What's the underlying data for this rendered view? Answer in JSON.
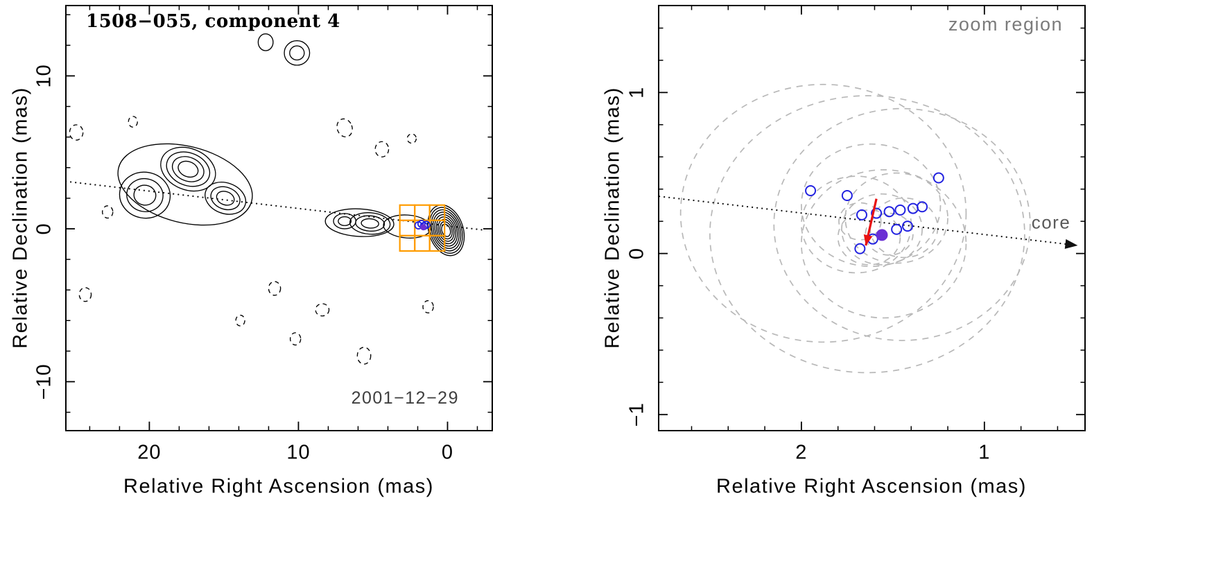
{
  "figure": {
    "bg": "#ffffff",
    "colors": {
      "contour": "#000000",
      "zoom_box": "#ff9c00",
      "epoch_point": "#2222e0",
      "mean_point": "#6a2fd4",
      "arrow": "#e81212",
      "dashed_ellipse": "#b8b8b8",
      "axis": "#000000"
    }
  },
  "chart_data": [
    {
      "type": "contour",
      "panel": "left",
      "title": "1508−055, component 4",
      "date_label": "2001−12−29",
      "xlabel": "Relative Right Ascension (mas)",
      "ylabel": "Relative Declination (mas)",
      "x_range": [
        25.6,
        -3.0
      ],
      "y_range": [
        -13.2,
        14.6
      ],
      "x_major": [
        {
          "v": 20,
          "label": "20"
        },
        {
          "v": 10,
          "label": "10"
        },
        {
          "v": 0,
          "label": "0"
        }
      ],
      "x_minor_step": 2,
      "y_major": [
        {
          "v": -10,
          "label": "−10"
        },
        {
          "v": 0,
          "label": "0"
        },
        {
          "v": 10,
          "label": "10"
        }
      ],
      "y_minor_step": 2,
      "jet_axis_line": {
        "x1": 25.6,
        "y1": 3.1,
        "x2": -2.6,
        "y2": -0.1
      },
      "contour_features": [
        {
          "x": 0.1,
          "y": -0.1,
          "rx": 1.15,
          "ry": 1.7,
          "angle": -18,
          "levels": 9,
          "style": "solid"
        },
        {
          "x": 2.7,
          "y": 0.15,
          "rx": 1.6,
          "ry": 0.75,
          "angle": 4,
          "levels": 1,
          "style": "solid"
        },
        {
          "x": 5.2,
          "y": 0.35,
          "rx": 1.35,
          "ry": 0.7,
          "angle": 4,
          "levels": 3,
          "style": "solid"
        },
        {
          "x": 6.9,
          "y": 0.5,
          "rx": 0.75,
          "ry": 0.5,
          "angle": 0,
          "levels": 2,
          "style": "solid"
        },
        {
          "x": 5.9,
          "y": 0.4,
          "rx": 2.3,
          "ry": 0.9,
          "angle": 3,
          "levels": 1,
          "style": "solid"
        },
        {
          "x": 17.6,
          "y": 2.9,
          "rx": 4.6,
          "ry": 2.5,
          "angle": 14,
          "levels": 1,
          "style": "solid"
        },
        {
          "x": 14.9,
          "y": 2.0,
          "rx": 1.4,
          "ry": 1.0,
          "angle": 20,
          "levels": 3,
          "style": "solid"
        },
        {
          "x": 17.4,
          "y": 3.9,
          "rx": 1.9,
          "ry": 1.35,
          "angle": 22,
          "levels": 4,
          "style": "solid"
        },
        {
          "x": 20.3,
          "y": 2.2,
          "rx": 1.7,
          "ry": 1.5,
          "angle": 10,
          "levels": 3,
          "style": "solid"
        },
        {
          "x": 10.1,
          "y": 11.5,
          "rx": 0.85,
          "ry": 0.8,
          "angle": 0,
          "levels": 2,
          "style": "solid"
        },
        {
          "x": 12.2,
          "y": 12.2,
          "rx": 0.5,
          "ry": 0.55,
          "angle": 0,
          "levels": 1,
          "style": "solid"
        },
        {
          "x": 24.9,
          "y": 6.3,
          "rx": 0.45,
          "ry": 0.5,
          "angle": 0,
          "levels": 1,
          "style": "dashed"
        },
        {
          "x": 21.1,
          "y": 7.0,
          "rx": 0.3,
          "ry": 0.35,
          "angle": 0,
          "levels": 1,
          "style": "dashed"
        },
        {
          "x": 6.9,
          "y": 6.6,
          "rx": 0.5,
          "ry": 0.6,
          "angle": -20,
          "levels": 1,
          "style": "dashed"
        },
        {
          "x": 4.4,
          "y": 5.2,
          "rx": 0.45,
          "ry": 0.5,
          "angle": 0,
          "levels": 1,
          "style": "dashed"
        },
        {
          "x": 2.4,
          "y": 5.9,
          "rx": 0.3,
          "ry": 0.3,
          "angle": 0,
          "levels": 1,
          "style": "dashed"
        },
        {
          "x": 11.6,
          "y": -3.9,
          "rx": 0.4,
          "ry": 0.45,
          "angle": 0,
          "levels": 1,
          "style": "dashed"
        },
        {
          "x": 8.4,
          "y": -5.3,
          "rx": 0.45,
          "ry": 0.4,
          "angle": 0,
          "levels": 1,
          "style": "dashed"
        },
        {
          "x": 5.6,
          "y": -8.3,
          "rx": 0.45,
          "ry": 0.55,
          "angle": 0,
          "levels": 1,
          "style": "dashed"
        },
        {
          "x": 10.2,
          "y": -7.2,
          "rx": 0.35,
          "ry": 0.4,
          "angle": 0,
          "levels": 1,
          "style": "dashed"
        },
        {
          "x": 13.9,
          "y": -6.0,
          "rx": 0.3,
          "ry": 0.35,
          "angle": 0,
          "levels": 1,
          "style": "dashed"
        },
        {
          "x": 1.3,
          "y": -5.1,
          "rx": 0.35,
          "ry": 0.4,
          "angle": 0,
          "levels": 1,
          "style": "dashed"
        },
        {
          "x": 24.3,
          "y": -4.3,
          "rx": 0.4,
          "ry": 0.45,
          "angle": 0,
          "levels": 1,
          "style": "dashed"
        },
        {
          "x": 22.8,
          "y": 1.1,
          "rx": 0.35,
          "ry": 0.4,
          "angle": 0,
          "levels": 1,
          "style": "dashed"
        }
      ],
      "zoom_boxes": [
        [
          2.7,
          1.05,
          1.0
        ],
        [
          1.7,
          1.05,
          1.0
        ],
        [
          0.7,
          1.05,
          1.0
        ],
        [
          2.7,
          0.05,
          1.0
        ],
        [
          1.7,
          0.05,
          1.0
        ],
        [
          0.7,
          0.05,
          1.0
        ],
        [
          2.7,
          -0.95,
          1.0
        ],
        [
          1.7,
          -0.95,
          1.0
        ],
        [
          0.7,
          -0.95,
          1.0
        ]
      ],
      "epoch_points": [
        [
          1.95,
          0.22
        ],
        [
          1.75,
          0.32
        ],
        [
          1.58,
          0.18
        ],
        [
          1.42,
          0.26
        ]
      ],
      "mean_point": [
        1.62,
        0.1
      ]
    },
    {
      "type": "scatter",
      "panel": "right",
      "corner_label": "zoom region",
      "core_label": "core",
      "xlabel": "Relative Right Ascension (mas)",
      "ylabel": "Relative Declination (mas)",
      "x_range": [
        2.78,
        0.45
      ],
      "y_range": [
        -1.1,
        1.54
      ],
      "x_major": [
        {
          "v": 2,
          "label": "2"
        },
        {
          "v": 1,
          "label": "1"
        }
      ],
      "x_minor_step": 0.2,
      "y_major": [
        {
          "v": -1,
          "label": "−1"
        },
        {
          "v": 0,
          "label": "0"
        },
        {
          "v": 1,
          "label": "1"
        }
      ],
      "y_minor_step": 0.2,
      "size_ellipses": [
        [
          1.88,
          0.25,
          0.78,
          0.8
        ],
        [
          1.64,
          0.12,
          0.86,
          0.86
        ],
        [
          1.45,
          0.18,
          0.7,
          0.72
        ],
        [
          1.55,
          0.06,
          0.45,
          0.46
        ],
        [
          1.62,
          0.3,
          0.38,
          0.38
        ],
        [
          1.7,
          0.18,
          0.3,
          0.3
        ],
        [
          1.48,
          0.22,
          0.28,
          0.28
        ],
        [
          1.56,
          0.15,
          0.22,
          0.22
        ],
        [
          1.63,
          0.1,
          0.17,
          0.17
        ],
        [
          1.52,
          0.12,
          0.13,
          0.13
        ],
        [
          1.68,
          0.2,
          0.115,
          0.115
        ],
        [
          1.44,
          0.16,
          0.185,
          0.185
        ]
      ],
      "epoch_points": [
        [
          1.95,
          0.39
        ],
        [
          1.75,
          0.36
        ],
        [
          1.67,
          0.24
        ],
        [
          1.59,
          0.25
        ],
        [
          1.52,
          0.26
        ],
        [
          1.46,
          0.27
        ],
        [
          1.39,
          0.28
        ],
        [
          1.25,
          0.47
        ],
        [
          1.68,
          0.03
        ],
        [
          1.61,
          0.09
        ],
        [
          1.48,
          0.15
        ],
        [
          1.42,
          0.17
        ],
        [
          1.34,
          0.29
        ]
      ],
      "mean_point": [
        1.56,
        0.115
      ],
      "velocity_arrow": {
        "x1": 1.59,
        "y1": 0.34,
        "x2": 1.648,
        "y2": 0.05
      },
      "core_direction_line": {
        "x1": 2.776,
        "y1": 0.355,
        "x2": 0.49,
        "y2": 0.05
      },
      "core_label_pos": [
        0.655,
        0.19
      ]
    }
  ]
}
